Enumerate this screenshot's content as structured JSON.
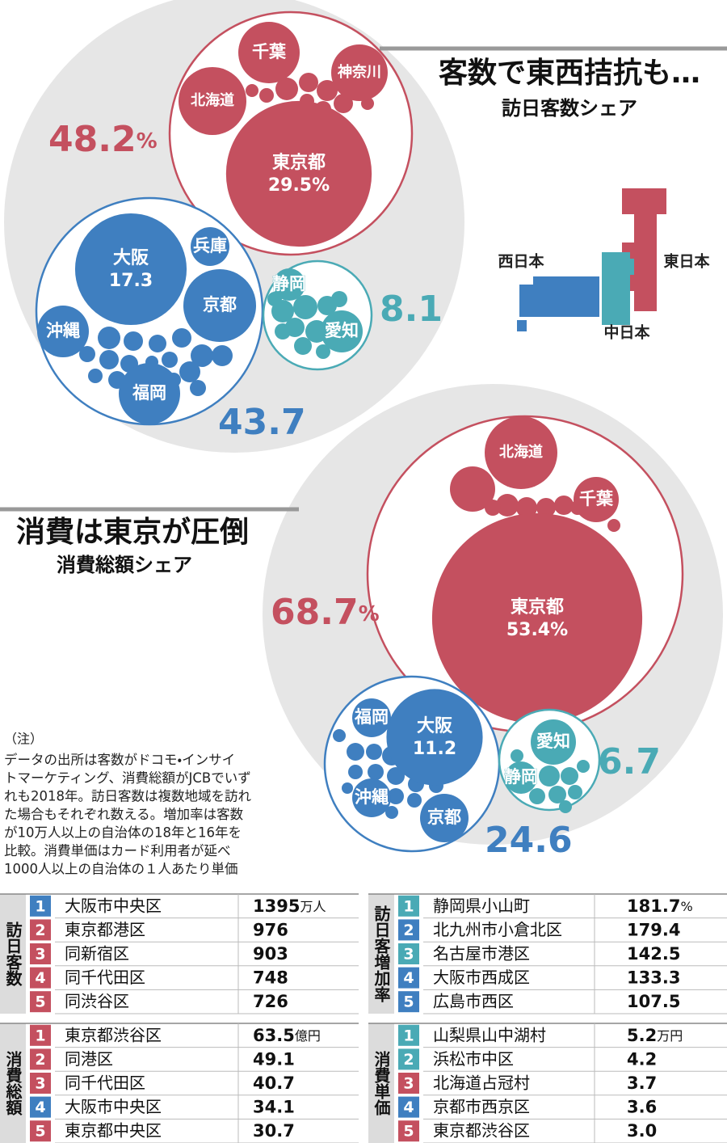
{
  "sections": [
    {
      "title": "客数で東西拮抗も…",
      "subtitle": "訪日客数シェア",
      "groups": [
        {
          "share": 48.2,
          "unit": "%",
          "color": "#c4505f",
          "bubbles": [
            {
              "name": "東京都",
              "value": 29.5,
              "value_label": "29.5%"
            },
            {
              "name": "千葉"
            },
            {
              "name": "北海道"
            },
            {
              "name": "神奈川"
            }
          ]
        },
        {
          "share": 43.7,
          "color": "#3f7fc0",
          "bubbles": [
            {
              "name": "大阪",
              "value": 17.3,
              "value_label": "17.3"
            },
            {
              "name": "兵庫"
            },
            {
              "name": "京都"
            },
            {
              "name": "沖縄"
            },
            {
              "name": "福岡"
            }
          ]
        },
        {
          "share": 8.1,
          "color": "#4aaab5",
          "bubbles": [
            {
              "name": "静岡"
            },
            {
              "name": "愛知"
            }
          ]
        }
      ]
    },
    {
      "title": "消費は東京が圧倒",
      "subtitle": "消費総額シェア",
      "groups": [
        {
          "share": 68.7,
          "unit": "%",
          "color": "#c4505f",
          "bubbles": [
            {
              "name": "東京都",
              "value": 53.4,
              "value_label": "53.4%"
            },
            {
              "name": "北海道"
            },
            {
              "name": "千葉"
            }
          ]
        },
        {
          "share": 24.6,
          "color": "#3f7fc0",
          "bubbles": [
            {
              "name": "大阪",
              "value": 11.2,
              "value_label": "11.2"
            },
            {
              "name": "福岡"
            },
            {
              "name": "沖縄"
            },
            {
              "name": "京都"
            }
          ]
        },
        {
          "share": 6.7,
          "color": "#4aaab5",
          "bubbles": [
            {
              "name": "愛知"
            },
            {
              "name": "静岡"
            }
          ]
        }
      ]
    }
  ],
  "map": {
    "labels": [
      "西日本",
      "東日本",
      "中日本"
    ]
  },
  "note": {
    "heading": "（注）",
    "lines": [
      "データの出所は客数がドコモ・インサイ",
      "トマーケティング、消費総額がJCBでいず",
      "れも2018年。訪日客数は複数地域を訪れ",
      "た場合もそれぞれ数える。増加率は客数",
      "が10万人以上の自治体の18年と16年を",
      "比較。消費単価はカード利用者が延べ",
      "1000人以上の自治体の１人あたり単価"
    ]
  },
  "tables": [
    {
      "heading": "訪日客数",
      "unit": "万人",
      "rows": [
        {
          "rank": 1,
          "place": "大阪市中央区",
          "value": 1395,
          "color": "#3f7fc0"
        },
        {
          "rank": 2,
          "place": "東京都港区",
          "value": 976,
          "color": "#c4505f"
        },
        {
          "rank": 3,
          "place": "同新宿区",
          "value": 903,
          "color": "#c4505f"
        },
        {
          "rank": 4,
          "place": "同千代田区",
          "value": 748,
          "color": "#c4505f"
        },
        {
          "rank": 5,
          "place": "同渋谷区",
          "value": 726,
          "color": "#c4505f"
        }
      ]
    },
    {
      "heading": "訪日客増加率",
      "unit": "%",
      "rows": [
        {
          "rank": 1,
          "place": "静岡県小山町",
          "value": 181.7,
          "color": "#4aaab5"
        },
        {
          "rank": 2,
          "place": "北九州市小倉北区",
          "value": 179.4,
          "color": "#3f7fc0"
        },
        {
          "rank": 3,
          "place": "名古屋市港区",
          "value": 142.5,
          "color": "#4aaab5"
        },
        {
          "rank": 4,
          "place": "大阪市西成区",
          "value": 133.3,
          "color": "#3f7fc0"
        },
        {
          "rank": 5,
          "place": "広島市西区",
          "value": 107.5,
          "color": "#3f7fc0"
        }
      ]
    },
    {
      "heading": "消費総額",
      "unit": "億円",
      "rows": [
        {
          "rank": 1,
          "place": "東京都渋谷区",
          "value": 63.5,
          "color": "#c4505f"
        },
        {
          "rank": 2,
          "place": "同港区",
          "value": 49.1,
          "color": "#c4505f"
        },
        {
          "rank": 3,
          "place": "同千代田区",
          "value": 40.7,
          "color": "#c4505f"
        },
        {
          "rank": 4,
          "place": "大阪市中央区",
          "value": 34.1,
          "color": "#3f7fc0"
        },
        {
          "rank": 5,
          "place": "東京都中央区",
          "value": 30.7,
          "color": "#c4505f"
        }
      ]
    },
    {
      "heading": "消費単価",
      "unit": "万円",
      "rows": [
        {
          "rank": 1,
          "place": "山梨県山中湖村",
          "value": 5.2,
          "color": "#4aaab5"
        },
        {
          "rank": 2,
          "place": "浜松市中区",
          "value": 4.2,
          "color": "#4aaab5"
        },
        {
          "rank": 3,
          "place": "北海道占冠村",
          "value": 3.7,
          "color": "#c4505f"
        },
        {
          "rank": 4,
          "place": "京都市西京区",
          "value": 3.6,
          "color": "#3f7fc0"
        },
        {
          "rank": 5,
          "place": "東京都渋谷区",
          "value": {
            "value": 3,
            "label": "3.0"
          },
          "color": "#c4505f"
        }
      ]
    }
  ]
}
